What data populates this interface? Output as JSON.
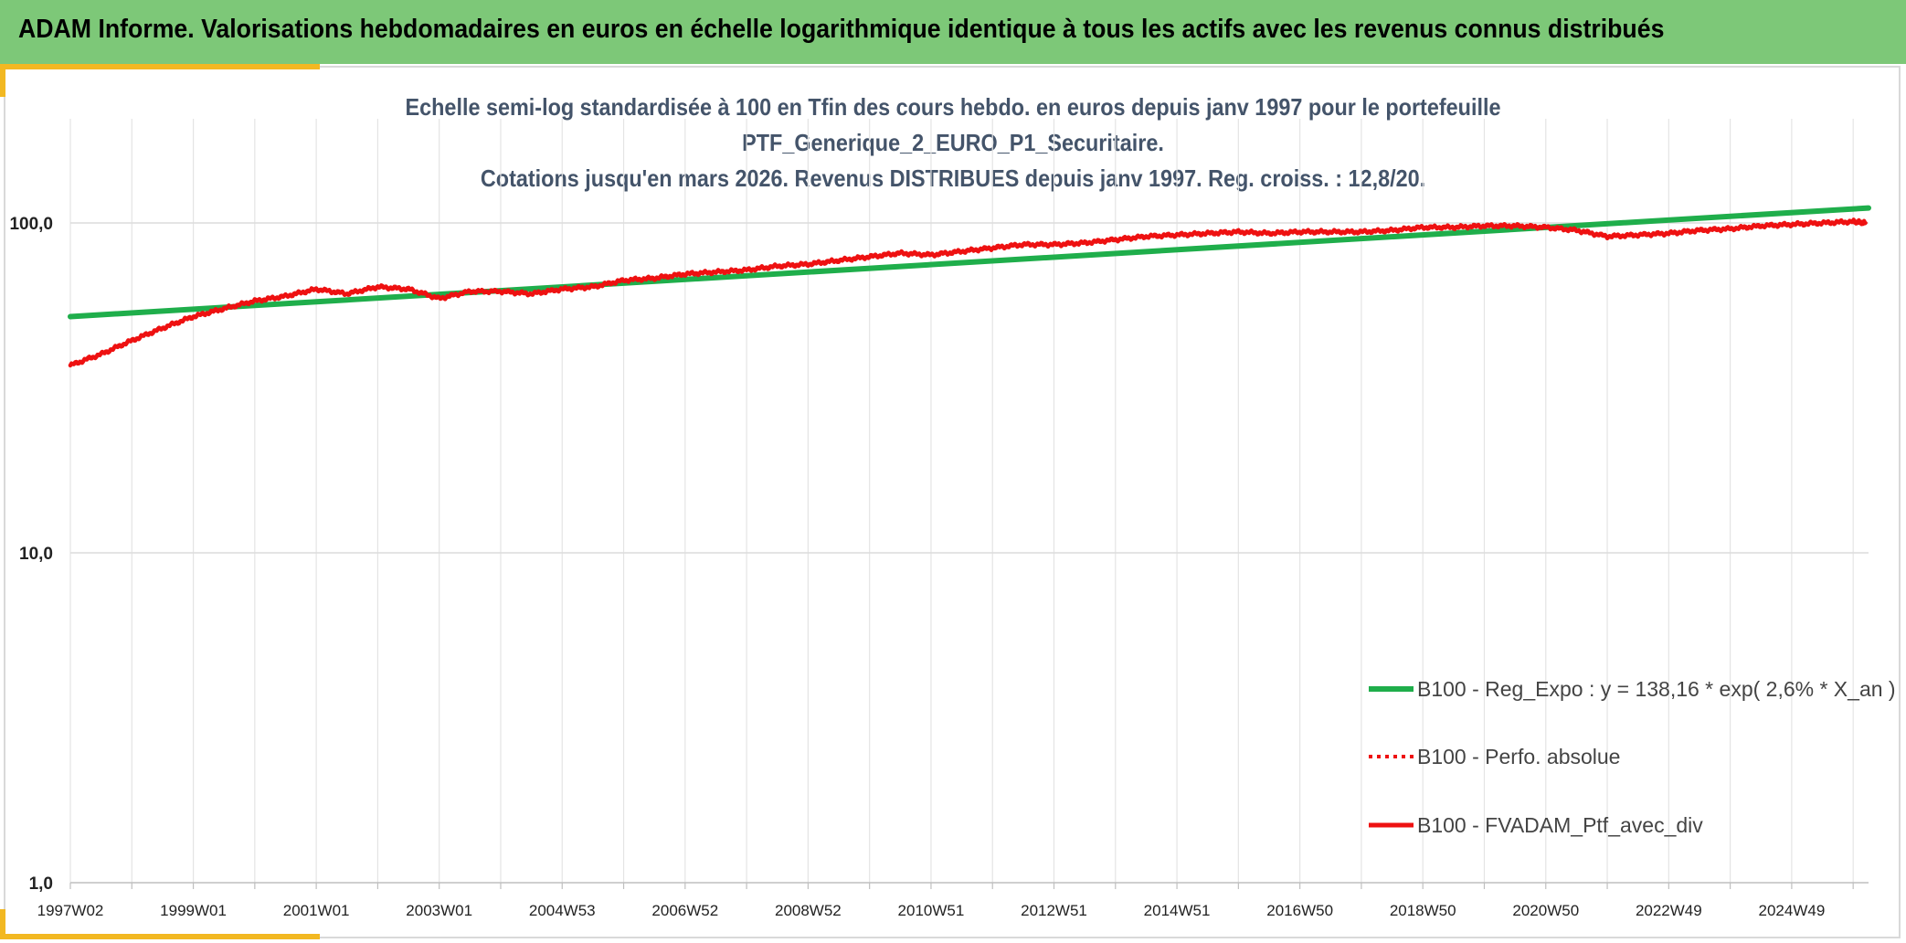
{
  "header": {
    "title": "ADAM Informe. Valorisations hebdomadaires en euros en échelle logarithmique identique à tous les actifs avec les revenus connus distribués"
  },
  "colors": {
    "header_bg": "#7dc878",
    "regression": "#1fae4b",
    "portfolio": "#ee1111",
    "accent": "#f2b822"
  },
  "chart_data": {
    "type": "line",
    "title_lines": [
      "Echelle semi-log standardisée à 100 en Tfin des cours hebdo. en euros depuis janv 1997 pour le portefeuille",
      "PTF_Generique_2_EURO_P1_Securitaire.",
      "Cotations jusqu'en mars 2026. Revenus DISTRIBUES depuis janv 1997. Reg. croiss. : 12,8/20."
    ],
    "y_scale": "log",
    "ylim": [
      1,
      200
    ],
    "y_ticks": [
      1,
      10,
      100
    ],
    "y_tick_labels": [
      "1,0",
      "10,0",
      "100,0"
    ],
    "xlim": [
      1997.0,
      2026.25
    ],
    "x_ticks": [
      1997.0,
      1999.0,
      2001.0,
      2003.0,
      2005.0,
      2007.0,
      2009.0,
      2011.0,
      2013.0,
      2015.0,
      2017.0,
      2019.0,
      2021.0,
      2023.0,
      2025.0
    ],
    "x_tick_labels": [
      "1997W02",
      "1999W01",
      "2001W01",
      "2003W01",
      "2004W53",
      "2006W52",
      "2008W52",
      "2010W51",
      "2012W51",
      "2014W51",
      "2016W50",
      "2018W50",
      "2020W50",
      "2022W49",
      "2024W49"
    ],
    "series": [
      {
        "name": "B100 - Reg_Expo : y = 138,16 * exp( 2,6% *  X_an )",
        "style": "solid-thick",
        "color": "#1fae4b",
        "x": [
          1997.0,
          2026.25
        ],
        "y": [
          52.0,
          111.0
        ]
      },
      {
        "name": "B100 - Perfo. absolue",
        "style": "dotted",
        "color": "#ee1111",
        "x": [],
        "y": []
      },
      {
        "name": "B100 - FVADAM_Ptf_avec_div",
        "style": "solid",
        "color": "#ee1111",
        "x": [
          1997.0,
          1997.5,
          1998.0,
          1998.5,
          1999.0,
          1999.5,
          2000.0,
          2000.5,
          2001.0,
          2001.5,
          2002.0,
          2002.5,
          2003.0,
          2003.5,
          2004.0,
          2004.5,
          2005.0,
          2005.5,
          2006.0,
          2006.5,
          2007.0,
          2007.5,
          2008.0,
          2008.5,
          2009.0,
          2009.5,
          2010.0,
          2010.5,
          2011.0,
          2011.5,
          2012.0,
          2012.5,
          2013.0,
          2013.5,
          2014.0,
          2014.5,
          2015.0,
          2015.5,
          2016.0,
          2016.5,
          2017.0,
          2017.5,
          2018.0,
          2018.5,
          2019.0,
          2019.5,
          2020.0,
          2020.5,
          2021.0,
          2021.5,
          2022.0,
          2022.5,
          2023.0,
          2023.5,
          2024.0,
          2024.5,
          2025.0,
          2025.5,
          2026.0,
          2026.2
        ],
        "y": [
          37,
          40,
          44,
          48,
          52,
          55,
          58,
          60,
          63,
          61,
          64,
          63,
          59,
          62,
          62,
          61,
          63,
          64,
          67,
          68,
          70,
          71,
          72,
          74,
          75,
          77,
          79,
          81,
          80,
          82,
          84,
          86,
          86,
          87,
          89,
          91,
          92,
          93,
          94,
          93,
          94,
          94,
          94,
          95,
          97,
          97,
          98,
          98,
          97,
          95,
          91,
          92,
          93,
          95,
          96,
          98,
          99,
          100,
          101,
          100
        ]
      }
    ]
  }
}
